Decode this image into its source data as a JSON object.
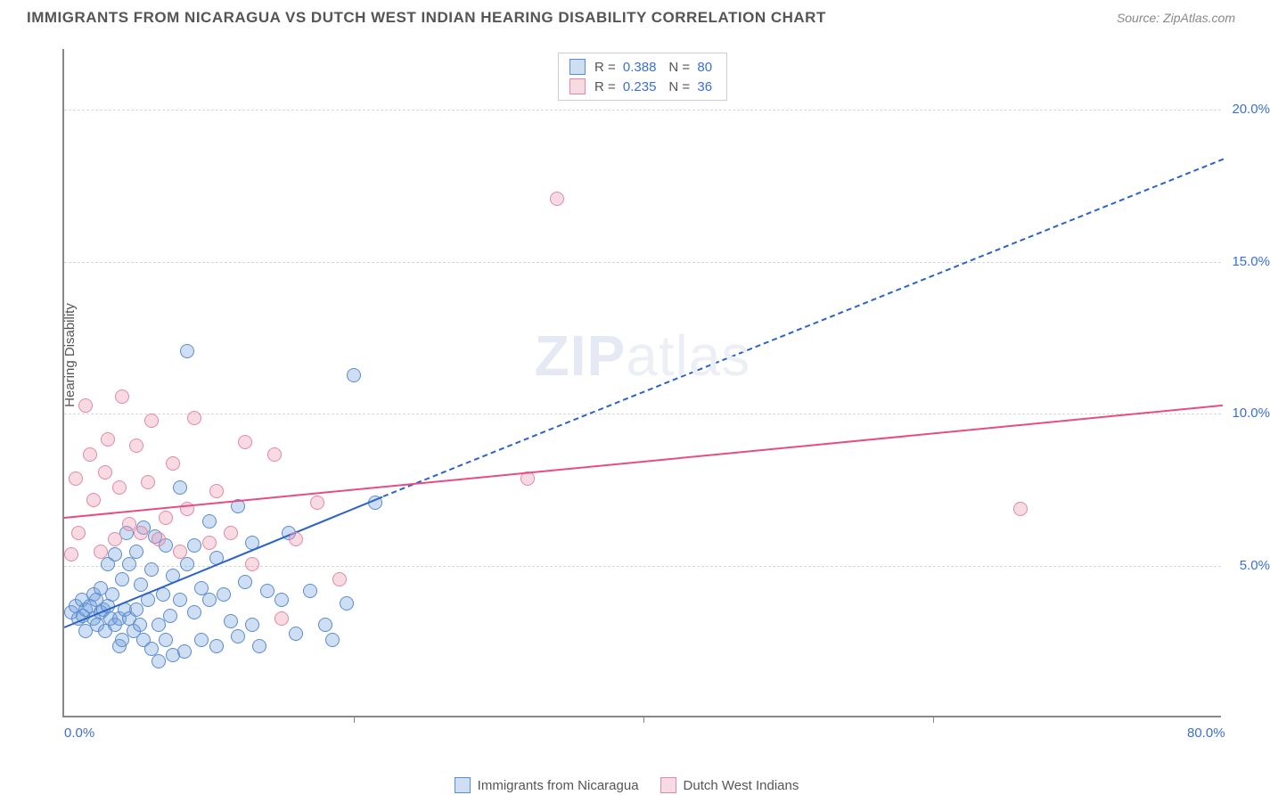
{
  "title": "IMMIGRANTS FROM NICARAGUA VS DUTCH WEST INDIAN HEARING DISABILITY CORRELATION CHART",
  "source": "Source: ZipAtlas.com",
  "ylabel": "Hearing Disability",
  "watermark_a": "ZIP",
  "watermark_b": "atlas",
  "chart": {
    "type": "scatter",
    "xlim": [
      0,
      80
    ],
    "ylim": [
      0,
      22
    ],
    "xticks": [
      0,
      80
    ],
    "xtick_labels": [
      "0.0%",
      "80.0%"
    ],
    "vticks": [
      20,
      40,
      60
    ],
    "yticks": [
      5,
      10,
      15,
      20
    ],
    "ytick_labels": [
      "5.0%",
      "10.0%",
      "15.0%",
      "20.0%"
    ],
    "grid_color": "#d7d7d7",
    "background": "#ffffff",
    "series": [
      {
        "name": "Immigrants from Nicaragua",
        "fill": "rgba(115,160,220,0.35)",
        "stroke": "#5a8cd0",
        "line_color": "#2b63c9",
        "R": "0.388",
        "N": "80",
        "trend": {
          "x1": 0,
          "y1": 3.0,
          "x2": 22,
          "y2": 7.3,
          "x2_ext": 80,
          "y2_ext": 18.4
        },
        "points": [
          [
            0.5,
            3.4
          ],
          [
            0.8,
            3.6
          ],
          [
            1.0,
            3.2
          ],
          [
            1.2,
            3.8
          ],
          [
            1.3,
            3.3
          ],
          [
            1.5,
            3.5
          ],
          [
            1.5,
            2.8
          ],
          [
            1.8,
            3.6
          ],
          [
            2.0,
            4.0
          ],
          [
            2.0,
            3.2
          ],
          [
            2.2,
            3.8
          ],
          [
            2.3,
            3.0
          ],
          [
            2.5,
            3.4
          ],
          [
            2.5,
            4.2
          ],
          [
            2.7,
            3.5
          ],
          [
            2.8,
            2.8
          ],
          [
            3.0,
            3.6
          ],
          [
            3.0,
            5.0
          ],
          [
            3.2,
            3.2
          ],
          [
            3.3,
            4.0
          ],
          [
            3.5,
            3.0
          ],
          [
            3.5,
            5.3
          ],
          [
            3.8,
            3.2
          ],
          [
            3.8,
            2.3
          ],
          [
            4.0,
            4.5
          ],
          [
            4.0,
            2.5
          ],
          [
            4.2,
            3.5
          ],
          [
            4.3,
            6.0
          ],
          [
            4.5,
            3.2
          ],
          [
            4.5,
            5.0
          ],
          [
            4.8,
            2.8
          ],
          [
            5.0,
            3.5
          ],
          [
            5.0,
            5.4
          ],
          [
            5.2,
            3.0
          ],
          [
            5.3,
            4.3
          ],
          [
            5.5,
            2.5
          ],
          [
            5.5,
            6.2
          ],
          [
            5.8,
            3.8
          ],
          [
            6.0,
            2.2
          ],
          [
            6.0,
            4.8
          ],
          [
            6.3,
            5.9
          ],
          [
            6.5,
            3.0
          ],
          [
            6.5,
            1.8
          ],
          [
            6.8,
            4.0
          ],
          [
            7.0,
            5.6
          ],
          [
            7.0,
            2.5
          ],
          [
            7.3,
            3.3
          ],
          [
            7.5,
            4.6
          ],
          [
            7.5,
            2.0
          ],
          [
            8.0,
            7.5
          ],
          [
            8.0,
            3.8
          ],
          [
            8.3,
            2.1
          ],
          [
            8.5,
            5.0
          ],
          [
            8.5,
            12.0
          ],
          [
            9.0,
            3.4
          ],
          [
            9.0,
            5.6
          ],
          [
            9.5,
            2.5
          ],
          [
            9.5,
            4.2
          ],
          [
            10.0,
            6.4
          ],
          [
            10.0,
            3.8
          ],
          [
            10.5,
            2.3
          ],
          [
            10.5,
            5.2
          ],
          [
            11.0,
            4.0
          ],
          [
            11.5,
            3.1
          ],
          [
            12.0,
            6.9
          ],
          [
            12.0,
            2.6
          ],
          [
            12.5,
            4.4
          ],
          [
            13.0,
            5.7
          ],
          [
            13.0,
            3.0
          ],
          [
            13.5,
            2.3
          ],
          [
            14.0,
            4.1
          ],
          [
            15.0,
            3.8
          ],
          [
            15.5,
            6.0
          ],
          [
            16.0,
            2.7
          ],
          [
            17.0,
            4.1
          ],
          [
            18.0,
            3.0
          ],
          [
            18.5,
            2.5
          ],
          [
            19.5,
            3.7
          ],
          [
            20.0,
            11.2
          ],
          [
            21.5,
            7.0
          ]
        ]
      },
      {
        "name": "Dutch West Indians",
        "fill": "rgba(235,150,175,0.35)",
        "stroke": "#e388a3",
        "line_color": "#e74d85",
        "R": "0.235",
        "N": "36",
        "trend": {
          "x1": 0,
          "y1": 6.6,
          "x2": 80,
          "y2": 10.3
        },
        "points": [
          [
            0.5,
            5.3
          ],
          [
            0.8,
            7.8
          ],
          [
            1.0,
            6.0
          ],
          [
            1.5,
            10.2
          ],
          [
            1.8,
            8.6
          ],
          [
            2.0,
            7.1
          ],
          [
            2.5,
            5.4
          ],
          [
            2.8,
            8.0
          ],
          [
            3.0,
            9.1
          ],
          [
            3.5,
            5.8
          ],
          [
            3.8,
            7.5
          ],
          [
            4.0,
            10.5
          ],
          [
            4.5,
            6.3
          ],
          [
            5.0,
            8.9
          ],
          [
            5.3,
            6.0
          ],
          [
            5.8,
            7.7
          ],
          [
            6.0,
            9.7
          ],
          [
            6.5,
            5.8
          ],
          [
            7.0,
            6.5
          ],
          [
            7.5,
            8.3
          ],
          [
            8.0,
            5.4
          ],
          [
            8.5,
            6.8
          ],
          [
            9.0,
            9.8
          ],
          [
            10.0,
            5.7
          ],
          [
            10.5,
            7.4
          ],
          [
            11.5,
            6.0
          ],
          [
            12.5,
            9.0
          ],
          [
            13.0,
            5.0
          ],
          [
            14.5,
            8.6
          ],
          [
            15.0,
            3.2
          ],
          [
            16.0,
            5.8
          ],
          [
            17.5,
            7.0
          ],
          [
            19.0,
            4.5
          ],
          [
            32.0,
            7.8
          ],
          [
            34.0,
            17.0
          ],
          [
            66.0,
            6.8
          ]
        ]
      }
    ]
  },
  "legend_top": {
    "r_label": "R =",
    "n_label": "N ="
  },
  "legend_bottom": {
    "items": [
      "Immigrants from Nicaragua",
      "Dutch West Indians"
    ]
  }
}
